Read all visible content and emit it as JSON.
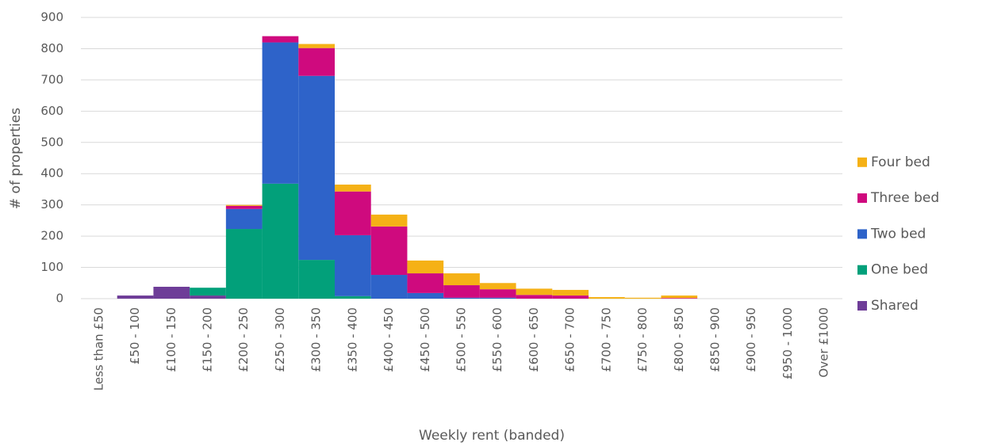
{
  "chart_data": {
    "type": "stacked_bar",
    "x_label": "Weekly rent (banded)",
    "y_label": "# of properties",
    "categories": [
      "Less than £50",
      "£50 - 100",
      "£100 - 150",
      "£150 - 200",
      "£200 - 250",
      "£250 - 300",
      "£300 - 350",
      "£350 - 400",
      "£400 - 450",
      "£450 - 500",
      "£500 - 550",
      "£550 - 600",
      "£600 - 650",
      "£650 - 700",
      "£700 - 750",
      "£750 - 800",
      "£800 - 850",
      "£850 - 900",
      "£900 - 950",
      "£950 - 1000",
      "Over £1000"
    ],
    "series": [
      {
        "name": "Shared",
        "color": "#6e3d98",
        "values": [
          0,
          10,
          38,
          10,
          0,
          0,
          0,
          0,
          0,
          0,
          0,
          0,
          0,
          0,
          0,
          0,
          0,
          0,
          0,
          0,
          0
        ]
      },
      {
        "name": "One bed",
        "color": "#02a07a",
        "values": [
          0,
          0,
          0,
          25,
          223,
          368,
          124,
          8,
          0,
          0,
          0,
          0,
          0,
          0,
          0,
          0,
          0,
          0,
          0,
          0,
          0
        ]
      },
      {
        "name": "Two bed",
        "color": "#2e63c9",
        "values": [
          0,
          0,
          0,
          0,
          64,
          452,
          589,
          195,
          76,
          18,
          3,
          3,
          0,
          0,
          0,
          0,
          0,
          0,
          0,
          0,
          0
        ]
      },
      {
        "name": "Three bed",
        "color": "#cf0a7e",
        "values": [
          0,
          0,
          0,
          0,
          10,
          20,
          89,
          140,
          155,
          63,
          40,
          27,
          12,
          10,
          0,
          0,
          2,
          0,
          0,
          0,
          0
        ]
      },
      {
        "name": "Four bed",
        "color": "#f5b116",
        "values": [
          0,
          0,
          0,
          0,
          3,
          0,
          13,
          22,
          38,
          41,
          38,
          20,
          20,
          18,
          5,
          3,
          8,
          0,
          0,
          0,
          0
        ]
      }
    ],
    "ylim": [
      0,
      900
    ],
    "yticks": [
      0,
      100,
      200,
      300,
      400,
      500,
      600,
      700,
      800,
      900
    ],
    "grid": true,
    "legend": "right"
  }
}
